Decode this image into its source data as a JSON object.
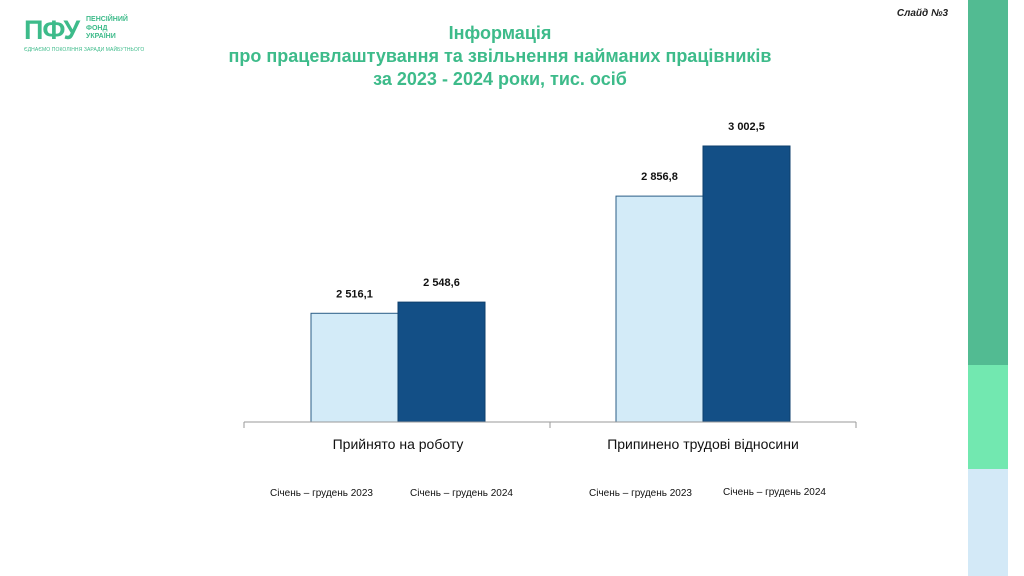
{
  "logo": {
    "mark": "ПФУ",
    "line1": "ПЕНСІЙНИЙ",
    "line2": "ФОНД",
    "line3": "УКРАЇНИ",
    "tagline": "ЄДНАЄМО ПОКОЛІННЯ ЗАРАДИ МАЙБУТНЬОГО"
  },
  "slide_number": "Слайд №3",
  "title": {
    "line1": "Інформація",
    "line2": "про працевлаштування та звільнення найманих працівників",
    "line3": "за 2023 - 2024  роки,  тис. осіб"
  },
  "colors": {
    "accent": "#3dbb8a",
    "series_2023": "#d3ebf8",
    "series_2024": "#134f86"
  },
  "chart_data": {
    "type": "bar",
    "categories": [
      "Прийнято на роботу",
      "Припинено трудові відносини"
    ],
    "series": [
      {
        "name": "Січень – грудень 2023",
        "values": [
          2516.1,
          2856.8
        ],
        "labels": [
          "2 516,1",
          "2 856,8"
        ],
        "color": "#d3ebf8"
      },
      {
        "name": "Січень – грудень 2024",
        "values": [
          2548.6,
          3002.5
        ],
        "labels": [
          "2 548,6",
          "3 002,5"
        ],
        "color": "#134f86"
      }
    ],
    "title": "Інформація про працевлаштування та звільнення найманих працівників за 2023 - 2024  роки,  тис. осіб",
    "xlabel": "",
    "ylabel": "",
    "ylim": [
      2200,
      3100
    ],
    "grid": false,
    "legend": [
      [
        "Січень – грудень 2023",
        "Січень – грудень 2024"
      ],
      [
        "Січень – грудень 2023",
        "Січень – грудень 2024"
      ]
    ]
  }
}
